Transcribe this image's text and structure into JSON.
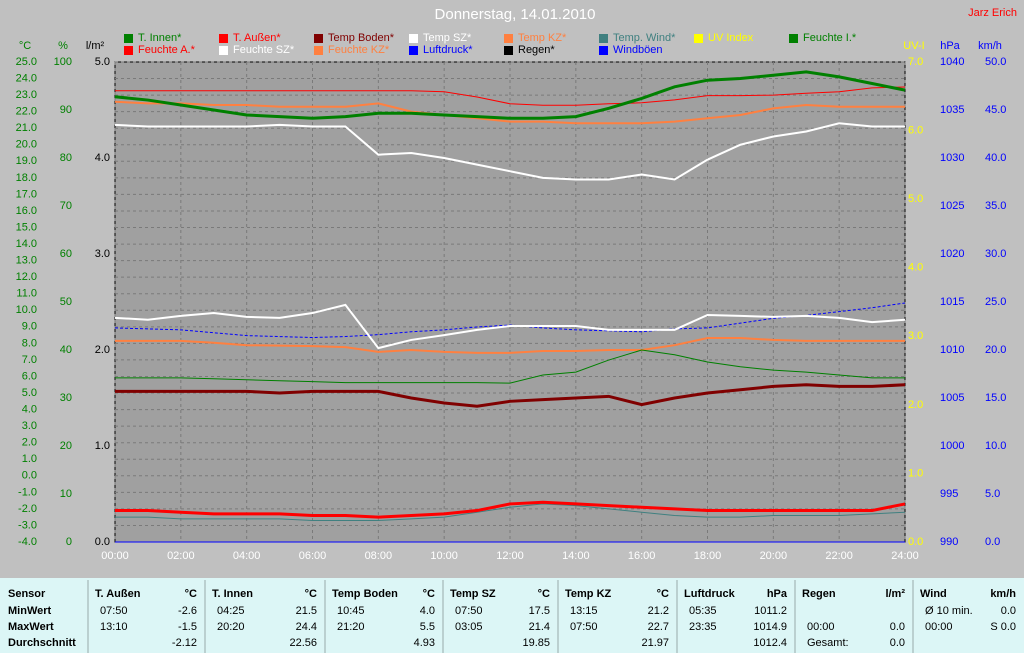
{
  "chart_data": {
    "type": "line",
    "title": "Donnerstag, 14.01.2010",
    "annotation": "Jarz Erich",
    "x": [
      0,
      1,
      2,
      3,
      4,
      5,
      6,
      7,
      8,
      9,
      10,
      11,
      12,
      13,
      14,
      15,
      16,
      17,
      18,
      19,
      20,
      21,
      22,
      23,
      24
    ],
    "xlim": [
      0,
      24
    ],
    "xticks": [
      {
        "value": 0,
        "label": "00:00"
      },
      {
        "value": 2,
        "label": "02:00"
      },
      {
        "value": 4,
        "label": "04:00"
      },
      {
        "value": 6,
        "label": "06:00"
      },
      {
        "value": 8,
        "label": "08:00"
      },
      {
        "value": 10,
        "label": "10:00"
      },
      {
        "value": 12,
        "label": "12:00"
      },
      {
        "value": 14,
        "label": "14:00"
      },
      {
        "value": 16,
        "label": "16:00"
      },
      {
        "value": 18,
        "label": "18:00"
      },
      {
        "value": 20,
        "label": "20:00"
      },
      {
        "value": 22,
        "label": "22:00"
      },
      {
        "value": 24,
        "label": "24:00"
      }
    ],
    "grid": true,
    "ylabel": "°C",
    "ylim": [
      -4,
      25
    ],
    "yticks": [
      {
        "value": -4,
        "label": "-4.0"
      },
      {
        "value": -3,
        "label": "-3.0"
      },
      {
        "value": -2,
        "label": "-2.0"
      },
      {
        "value": -1,
        "label": "-1.0"
      },
      {
        "value": 0,
        "label": "0.0"
      },
      {
        "value": 1,
        "label": "1.0"
      },
      {
        "value": 2,
        "label": "2.0"
      },
      {
        "value": 3,
        "label": "3.0"
      },
      {
        "value": 4,
        "label": "4.0"
      },
      {
        "value": 5,
        "label": "5.0"
      },
      {
        "value": 6,
        "label": "6.0"
      },
      {
        "value": 7,
        "label": "7.0"
      },
      {
        "value": 8,
        "label": "8.0"
      },
      {
        "value": 9,
        "label": "9.0"
      },
      {
        "value": 10,
        "label": "10.0"
      },
      {
        "value": 11,
        "label": "11.0"
      },
      {
        "value": 12,
        "label": "12.0"
      },
      {
        "value": 13,
        "label": "13.0"
      },
      {
        "value": 14,
        "label": "14.0"
      },
      {
        "value": 15,
        "label": "15.0"
      },
      {
        "value": 16,
        "label": "16.0"
      },
      {
        "value": 17,
        "label": "17.0"
      },
      {
        "value": 18,
        "label": "18.0"
      },
      {
        "value": 19,
        "label": "19.0"
      },
      {
        "value": 20,
        "label": "20.0"
      },
      {
        "value": 21,
        "label": "21.0"
      },
      {
        "value": 22,
        "label": "22.0"
      },
      {
        "value": 23,
        "label": "23.0"
      },
      {
        "value": 24,
        "label": "24.0"
      },
      {
        "value": 25,
        "label": "25.0"
      }
    ],
    "y2label": "%",
    "y2lim": [
      0,
      100
    ],
    "y2ticks": [
      0,
      10,
      20,
      30,
      40,
      50,
      60,
      70,
      80,
      90,
      100
    ],
    "y3label": "l/m²",
    "y3lim": [
      0,
      5
    ],
    "y3ticks": [
      {
        "value": 0,
        "label": "0.0"
      },
      {
        "value": 1,
        "label": "1.0"
      },
      {
        "value": 2,
        "label": "2.0"
      },
      {
        "value": 3,
        "label": "3.0"
      },
      {
        "value": 4,
        "label": "4.0"
      },
      {
        "value": 5,
        "label": "5.0"
      }
    ],
    "y4label": "UV-I",
    "y4lim": [
      0,
      7
    ],
    "y4ticks": [
      {
        "value": 0,
        "label": "0.0"
      },
      {
        "value": 1,
        "label": "1.0"
      },
      {
        "value": 2,
        "label": "2.0"
      },
      {
        "value": 3,
        "label": "3.0"
      },
      {
        "value": 4,
        "label": "4.0"
      },
      {
        "value": 5,
        "label": "5.0"
      },
      {
        "value": 6,
        "label": "6.0"
      },
      {
        "value": 7,
        "label": "7.0"
      }
    ],
    "y5label": "hPa",
    "y5lim": [
      990,
      1040
    ],
    "y5ticks": [
      990,
      995,
      1000,
      1005,
      1010,
      1015,
      1020,
      1025,
      1030,
      1035,
      1040
    ],
    "y6label": "km/h",
    "y6lim": [
      0,
      50
    ],
    "y6ticks": [
      {
        "value": 0,
        "label": "0.0"
      },
      {
        "value": 5,
        "label": "5.0"
      },
      {
        "value": 10,
        "label": "10.0"
      },
      {
        "value": 15,
        "label": "15.0"
      },
      {
        "value": 20,
        "label": "20.0"
      },
      {
        "value": 25,
        "label": "25.0"
      },
      {
        "value": 30,
        "label": "30.0"
      },
      {
        "value": 35,
        "label": "35.0"
      },
      {
        "value": 40,
        "label": "40.0"
      },
      {
        "value": 45,
        "label": "45.0"
      },
      {
        "value": 50,
        "label": "50.0"
      }
    ],
    "series": [
      {
        "name": "T. Innen*",
        "color": "#008000",
        "axis": "y",
        "values": [
          22.9,
          22.7,
          22.4,
          22.1,
          21.8,
          21.7,
          21.6,
          21.7,
          21.9,
          21.9,
          21.8,
          21.7,
          21.6,
          21.6,
          21.7,
          22.2,
          22.8,
          23.5,
          23.9,
          24.0,
          24.2,
          24.4,
          24.1,
          23.7,
          23.3
        ]
      },
      {
        "name": "T. Außen*",
        "color": "#ff0000",
        "axis": "y",
        "values": [
          -2.1,
          -2.1,
          -2.2,
          -2.3,
          -2.3,
          -2.3,
          -2.4,
          -2.4,
          -2.5,
          -2.4,
          -2.3,
          -2.1,
          -1.7,
          -1.6,
          -1.7,
          -1.8,
          -1.9,
          -2.0,
          -2.1,
          -2.1,
          -2.1,
          -2.1,
          -2.1,
          -2.1,
          -1.7
        ]
      },
      {
        "name": "Temp Boden*",
        "color": "#800000",
        "axis": "y",
        "values": [
          5.1,
          5.1,
          5.1,
          5.1,
          5.1,
          5.0,
          5.1,
          5.1,
          5.1,
          4.7,
          4.4,
          4.2,
          4.5,
          4.6,
          4.7,
          4.8,
          4.3,
          4.7,
          5.0,
          5.2,
          5.4,
          5.5,
          5.4,
          5.4,
          5.5
        ]
      },
      {
        "name": "Temp SZ*",
        "color": "#ffffff",
        "axis": "y",
        "values": [
          21.2,
          21.1,
          21.1,
          21.1,
          21.1,
          21.2,
          21.1,
          21.1,
          19.4,
          19.5,
          19.2,
          18.8,
          18.4,
          18.0,
          17.9,
          17.9,
          18.2,
          17.9,
          19.1,
          20.0,
          20.5,
          20.8,
          21.3,
          21.1,
          21.1
        ]
      },
      {
        "name": "Temp KZ*",
        "color": "#ff8040",
        "axis": "y",
        "values": [
          22.6,
          22.5,
          22.5,
          22.4,
          22.4,
          22.3,
          22.3,
          22.3,
          22.5,
          22.0,
          21.8,
          21.6,
          21.4,
          21.4,
          21.3,
          21.3,
          21.3,
          21.4,
          21.6,
          21.8,
          22.2,
          22.4,
          22.3,
          22.3,
          22.3
        ]
      },
      {
        "name": "Temp. Wind*",
        "color": "#408080",
        "axis": "y",
        "values": [
          -2.5,
          -2.5,
          -2.6,
          -2.6,
          -2.6,
          -2.6,
          -2.7,
          -2.7,
          -2.7,
          -2.6,
          -2.5,
          -2.2,
          -1.9,
          -1.7,
          -1.8,
          -2.0,
          -2.2,
          -2.4,
          -2.5,
          -2.5,
          -2.4,
          -2.4,
          -2.4,
          -2.3,
          -2.2
        ]
      },
      {
        "name": "UV Index",
        "color": "#ffff00",
        "axis": "y4",
        "values": [
          0,
          0,
          0,
          0,
          0,
          0,
          0,
          0,
          0,
          0,
          0,
          0,
          0,
          0,
          0,
          0,
          0,
          0,
          0,
          0,
          0,
          0,
          0,
          0,
          0
        ]
      },
      {
        "name": "Feuchte I.*",
        "color": "#008000",
        "axis": "y2",
        "values": [
          34.2,
          34.2,
          34.2,
          34.0,
          33.8,
          33.6,
          33.4,
          33.2,
          33.2,
          33.2,
          33.2,
          33.2,
          33.1,
          34.8,
          35.4,
          37.9,
          40.0,
          39.0,
          37.5,
          36.5,
          35.8,
          35.4,
          34.8,
          34.2,
          34.2
        ]
      },
      {
        "name": "Feuchte A.*",
        "color": "#ff0000",
        "axis": "y2",
        "values": [
          94.0,
          94.0,
          94.0,
          94.0,
          94.0,
          94.0,
          94.0,
          94.0,
          94.0,
          94.0,
          93.8,
          92.7,
          91.3,
          91.0,
          91.0,
          91.3,
          91.5,
          92.1,
          93.0,
          93.0,
          93.1,
          93.5,
          93.8,
          94.6,
          94.8
        ]
      },
      {
        "name": "Feuchte SZ*",
        "color": "#ffffff",
        "axis": "y2",
        "values": [
          46.7,
          46.3,
          47.1,
          47.7,
          46.9,
          46.7,
          47.7,
          49.4,
          40.4,
          42.1,
          43.1,
          44.2,
          45.0,
          45.0,
          45.0,
          44.2,
          44.2,
          44.2,
          47.3,
          47.1,
          46.9,
          47.1,
          46.7,
          45.8,
          46.3
        ]
      },
      {
        "name": "Feuchte KZ*",
        "color": "#ff8040",
        "axis": "y2",
        "values": [
          41.9,
          41.9,
          41.9,
          41.5,
          41.0,
          40.9,
          40.8,
          40.6,
          39.6,
          40.0,
          39.6,
          39.4,
          39.4,
          39.8,
          39.8,
          40.0,
          40.0,
          41.0,
          42.5,
          42.5,
          42.1,
          41.9,
          41.9,
          41.9,
          41.9
        ]
      },
      {
        "name": "Luftdruck*",
        "color": "#0000ff",
        "axis": "y5",
        "values": [
          1012.3,
          1012.2,
          1012.1,
          1011.8,
          1011.5,
          1011.4,
          1011.3,
          1011.4,
          1011.6,
          1011.9,
          1012.1,
          1012.4,
          1012.6,
          1012.3,
          1012.1,
          1012.0,
          1011.9,
          1012.2,
          1012.3,
          1012.8,
          1013.3,
          1013.6,
          1014.0,
          1014.4,
          1014.9
        ]
      },
      {
        "name": "Regen*",
        "color": "#000000",
        "axis": "y3",
        "values": [
          0,
          0,
          0,
          0,
          0,
          0,
          0,
          0,
          0,
          0,
          0,
          0,
          0,
          0,
          0,
          0,
          0,
          0,
          0,
          0,
          0,
          0,
          0,
          0,
          0
        ]
      },
      {
        "name": "Windböen",
        "color": "#0000ff",
        "axis": "y6",
        "values": [
          0,
          0,
          0,
          0,
          0,
          0,
          0,
          0,
          0,
          0,
          0,
          0,
          0,
          0,
          0,
          0,
          0,
          0,
          0,
          0,
          0,
          0,
          0,
          0,
          0
        ]
      }
    ]
  },
  "table": {
    "header": "Sensor",
    "row_labels": [
      "MinWert",
      "MaxWert",
      "Durchschnitt"
    ],
    "columns": [
      {
        "name": "T. Außen",
        "unit": "°C",
        "cells": [
          {
            "time": "07:50",
            "value": "-2.6"
          },
          {
            "time": "13:10",
            "value": "-1.5"
          },
          {
            "value": "-2.12"
          }
        ]
      },
      {
        "name": "T. Innen",
        "unit": "°C",
        "cells": [
          {
            "time": "04:25",
            "value": "21.5"
          },
          {
            "time": "20:20",
            "value": "24.4"
          },
          {
            "value": "22.56"
          }
        ]
      },
      {
        "name": "Temp Boden",
        "unit": "°C",
        "cells": [
          {
            "time": "10:45",
            "value": "4.0"
          },
          {
            "time": "21:20",
            "value": "5.5"
          },
          {
            "value": "4.93"
          }
        ]
      },
      {
        "name": "Temp SZ",
        "unit": "°C",
        "cells": [
          {
            "time": "07:50",
            "value": "17.5"
          },
          {
            "time": "03:05",
            "value": "21.4"
          },
          {
            "value": "19.85"
          }
        ]
      },
      {
        "name": "Temp KZ",
        "unit": "°C",
        "cells": [
          {
            "time": "13:15",
            "value": "21.2"
          },
          {
            "time": "07:50",
            "value": "22.7"
          },
          {
            "value": "21.97"
          }
        ]
      },
      {
        "name": "Luftdruck",
        "unit": "hPa",
        "cells": [
          {
            "time": "05:35",
            "value": "1011.2"
          },
          {
            "time": "23:35",
            "value": "1014.9"
          },
          {
            "value": "1012.4"
          }
        ]
      },
      {
        "name": "Regen",
        "unit": "l/m²",
        "cells": [
          null,
          {
            "time": "00:00",
            "value": "0.0"
          },
          {
            "time": "Gesamt:",
            "value": "0.0"
          }
        ]
      },
      {
        "name": "Wind",
        "unit": "km/h",
        "cells": [
          {
            "time": "Ø 10 min.",
            "value": "0.0"
          },
          {
            "time": "00:00",
            "value": "S 0.0"
          },
          null
        ]
      }
    ]
  }
}
